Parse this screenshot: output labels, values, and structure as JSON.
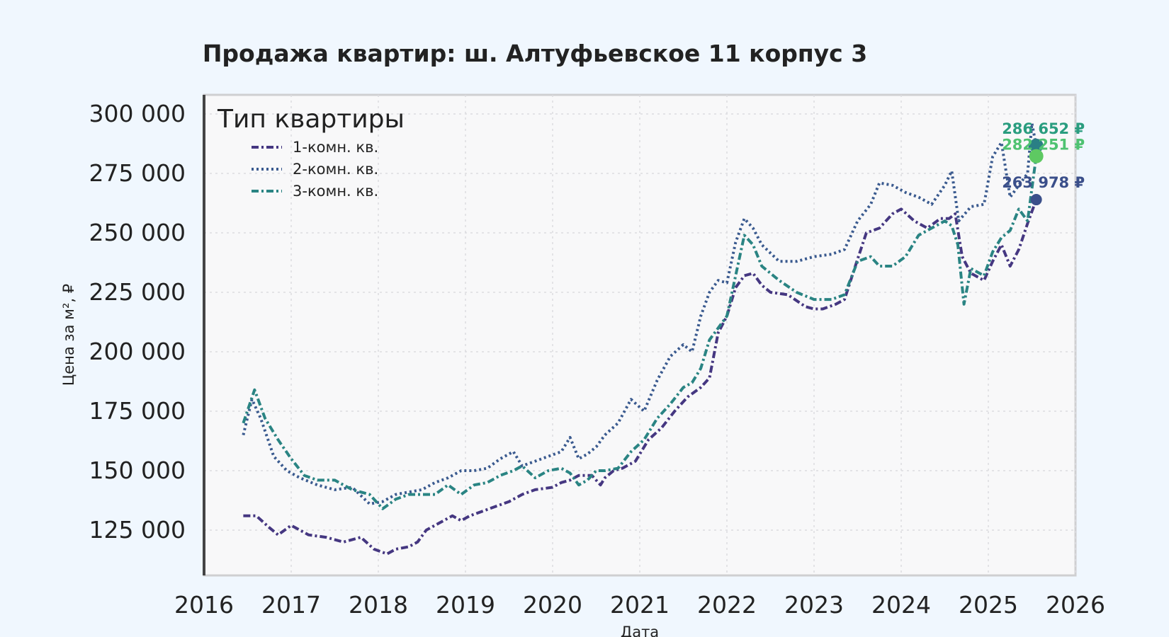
{
  "chart_data": {
    "type": "line",
    "title": "Продажа квартир: ш. Алтуфьевское 11 корпус 3",
    "xlabel": "Дата",
    "ylabel": "Цена за м², ₽",
    "xlim": [
      2016,
      2026
    ],
    "ylim": [
      105000,
      310000
    ],
    "x_ticks": [
      "2016",
      "2017",
      "2018",
      "2019",
      "2020",
      "2021",
      "2022",
      "2023",
      "2024",
      "2025",
      "2026"
    ],
    "y_ticks": [
      "125 000",
      "150 000",
      "175 000",
      "200 000",
      "225 000",
      "250 000",
      "275 000",
      "300 000"
    ],
    "y_tick_values": [
      125000,
      150000,
      175000,
      200000,
      225000,
      250000,
      275000,
      300000
    ],
    "grid": true,
    "legend": {
      "title": "Тип квартиры",
      "placement": "top-left"
    },
    "series": [
      {
        "name": "1-комн. кв.",
        "color": "#453781",
        "style": "dashdot",
        "x": [
          2016.45,
          2016.6,
          2016.75,
          2016.85,
          2017.0,
          2017.2,
          2017.4,
          2017.6,
          2017.8,
          2017.95,
          2018.1,
          2018.2,
          2018.35,
          2018.45,
          2018.55,
          2018.7,
          2018.85,
          2018.95,
          2019.05,
          2019.2,
          2019.35,
          2019.5,
          2019.65,
          2019.8,
          2020.0,
          2020.1,
          2020.2,
          2020.3,
          2020.45,
          2020.55,
          2020.6,
          2020.7,
          2020.8,
          2020.95,
          2021.1,
          2021.25,
          2021.4,
          2021.55,
          2021.7,
          2021.8,
          2021.9,
          2022.0,
          2022.1,
          2022.2,
          2022.3,
          2022.4,
          2022.5,
          2022.7,
          2022.9,
          2023.0,
          2023.1,
          2023.25,
          2023.35,
          2023.5,
          2023.6,
          2023.75,
          2023.9,
          2024.0,
          2024.15,
          2024.3,
          2024.45,
          2024.55,
          2024.62,
          2024.7,
          2024.8,
          2024.95,
          2025.05,
          2025.15,
          2025.25,
          2025.35,
          2025.45,
          2025.55
        ],
        "y": [
          131000,
          131000,
          126000,
          123000,
          127000,
          123000,
          122000,
          120000,
          122000,
          117000,
          115000,
          117000,
          118000,
          120000,
          125000,
          128000,
          131000,
          129000,
          131000,
          133000,
          135000,
          137000,
          140000,
          142000,
          143000,
          145000,
          146000,
          148000,
          148000,
          144000,
          147000,
          150000,
          151000,
          154000,
          163000,
          168000,
          175000,
          181000,
          185000,
          189000,
          208000,
          215000,
          227000,
          232000,
          233000,
          228000,
          225000,
          224000,
          219000,
          218000,
          218000,
          220000,
          222000,
          239000,
          250000,
          252000,
          258000,
          260000,
          255000,
          252000,
          256000,
          256000,
          258000,
          240000,
          233000,
          230000,
          238000,
          245000,
          236000,
          243000,
          254000,
          263978
        ]
      },
      {
        "name": "2-комн. кв.",
        "color": "#3a5a8f",
        "style": "dotted",
        "x": [
          2016.45,
          2016.55,
          2016.65,
          2016.8,
          2016.95,
          2017.1,
          2017.3,
          2017.5,
          2017.7,
          2017.9,
          2018.05,
          2018.2,
          2018.35,
          2018.5,
          2018.65,
          2018.8,
          2018.95,
          2019.1,
          2019.25,
          2019.4,
          2019.55,
          2019.65,
          2019.8,
          2019.95,
          2020.1,
          2020.2,
          2020.3,
          2020.4,
          2020.5,
          2020.6,
          2020.75,
          2020.9,
          2021.05,
          2021.2,
          2021.35,
          2021.5,
          2021.6,
          2021.7,
          2021.8,
          2021.9,
          2022.0,
          2022.1,
          2022.2,
          2022.3,
          2022.4,
          2022.6,
          2022.8,
          2023.0,
          2023.2,
          2023.35,
          2023.5,
          2023.65,
          2023.75,
          2023.9,
          2024.05,
          2024.2,
          2024.35,
          2024.5,
          2024.58,
          2024.66,
          2024.8,
          2024.95,
          2025.05,
          2025.15,
          2025.25,
          2025.35,
          2025.45,
          2025.5,
          2025.55
        ],
        "y": [
          165000,
          180000,
          172000,
          156000,
          150000,
          147000,
          144000,
          142000,
          143000,
          136000,
          137000,
          140000,
          141000,
          142000,
          145000,
          147000,
          150000,
          150000,
          151000,
          155000,
          158000,
          152000,
          154000,
          156000,
          158000,
          164000,
          155000,
          157000,
          160000,
          165000,
          170000,
          180000,
          175000,
          188000,
          198000,
          203000,
          200000,
          215000,
          225000,
          230000,
          229000,
          246000,
          256000,
          252000,
          245000,
          238000,
          238000,
          240000,
          241000,
          243000,
          255000,
          262000,
          271000,
          270000,
          267000,
          265000,
          262000,
          270000,
          276000,
          255000,
          261000,
          262000,
          282000,
          288000,
          265000,
          270000,
          275000,
          296000,
          286652
        ]
      },
      {
        "name": "3-комн. кв.",
        "color": "#2a8483",
        "style": "dashdot",
        "x": [
          2016.45,
          2016.58,
          2016.7,
          2016.85,
          2017.0,
          2017.15,
          2017.3,
          2017.5,
          2017.7,
          2017.9,
          2018.05,
          2018.2,
          2018.35,
          2018.5,
          2018.65,
          2018.8,
          2018.95,
          2019.1,
          2019.25,
          2019.4,
          2019.55,
          2019.65,
          2019.8,
          2019.95,
          2020.1,
          2020.2,
          2020.3,
          2020.4,
          2020.5,
          2020.6,
          2020.75,
          2020.9,
          2021.05,
          2021.2,
          2021.35,
          2021.5,
          2021.6,
          2021.7,
          2021.8,
          2021.9,
          2022.0,
          2022.1,
          2022.2,
          2022.3,
          2022.4,
          2022.6,
          2022.8,
          2023.0,
          2023.2,
          2023.35,
          2023.5,
          2023.65,
          2023.75,
          2023.9,
          2024.05,
          2024.2,
          2024.35,
          2024.5,
          2024.58,
          2024.65,
          2024.72,
          2024.8,
          2024.95,
          2025.05,
          2025.15,
          2025.25,
          2025.35,
          2025.45,
          2025.55
        ],
        "y": [
          170000,
          184000,
          172000,
          163000,
          155000,
          148000,
          146000,
          146000,
          142000,
          140000,
          134000,
          138000,
          140000,
          140000,
          140000,
          144000,
          140000,
          144000,
          145000,
          148000,
          150000,
          152000,
          147000,
          150000,
          151000,
          149000,
          144000,
          146000,
          150000,
          150000,
          151000,
          158000,
          163000,
          172000,
          178000,
          185000,
          187000,
          193000,
          205000,
          210000,
          215000,
          232000,
          249000,
          245000,
          236000,
          230000,
          225000,
          222000,
          222000,
          224000,
          238000,
          240000,
          236000,
          236000,
          240000,
          249000,
          252000,
          255000,
          253000,
          245000,
          220000,
          235000,
          232000,
          242000,
          248000,
          251000,
          260000,
          255000,
          282251
        ]
      }
    ],
    "last_value_markers": [
      {
        "series": "2-комн. кв.",
        "label": "286 652 ₽",
        "x": 2025.55,
        "y": 286652,
        "color": "#2a7f85",
        "label_color": "#2a9d7f"
      },
      {
        "series": "3-комн. кв.",
        "label": "282 251 ₽",
        "x": 2025.55,
        "y": 282251,
        "color": "#5ec962",
        "label_color": "#4fc271"
      },
      {
        "series": "1-комн. кв.",
        "label": "263 978 ₽",
        "x": 2025.55,
        "y": 263978,
        "color": "#3b4f8a",
        "label_color": "#3b4f8a"
      }
    ]
  }
}
